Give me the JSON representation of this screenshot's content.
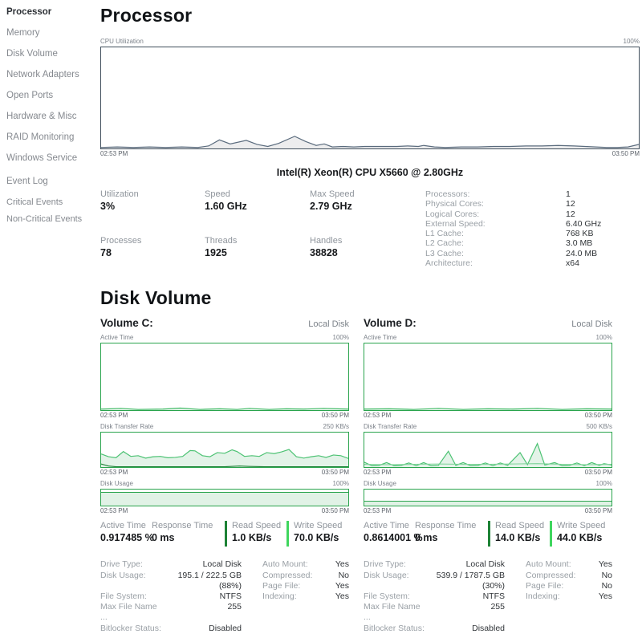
{
  "colors": {
    "accent_green": "#2aa44d",
    "green_light": "#4cc273",
    "green_pale": "#7fd49a",
    "green_fill": "rgba(42,164,77,0.13)",
    "read_bar": "#1d8236",
    "write_bar": "#3fd65e",
    "cpu_border": "#3f4e5c",
    "cpu_line": "#5a6b7d",
    "cpu_fill": "#ededee"
  },
  "sidebar": {
    "items": [
      {
        "label": "Processor",
        "active": true
      },
      {
        "label": "Memory"
      },
      {
        "label": "Disk Volume"
      },
      {
        "label": "Network Adapters"
      },
      {
        "label": "Open Ports"
      },
      {
        "label": "Hardware & Misc"
      },
      {
        "label": "RAID Monitoring"
      },
      {
        "label": "Windows Service"
      },
      {
        "label": "Event Log",
        "group_start": true
      },
      {
        "label": "Critical Events",
        "sub": true
      },
      {
        "label": "Non-Critical Events",
        "sub": true
      }
    ]
  },
  "processor": {
    "title": "Processor",
    "chart": {
      "label": "CPU Utilization",
      "max_label": "100%",
      "start_time": "02:53 PM",
      "end_time": "03:50 PM",
      "points": [
        [
          0,
          1
        ],
        [
          3,
          1.5
        ],
        [
          6,
          1
        ],
        [
          9,
          1.5
        ],
        [
          12,
          1
        ],
        [
          15,
          1.5
        ],
        [
          18,
          1
        ],
        [
          20,
          2.5
        ],
        [
          22,
          8.5
        ],
        [
          24,
          4.5
        ],
        [
          27,
          8
        ],
        [
          29,
          4
        ],
        [
          31,
          2
        ],
        [
          33,
          5
        ],
        [
          36,
          12
        ],
        [
          38,
          7
        ],
        [
          40,
          3
        ],
        [
          41.5,
          4.5
        ],
        [
          43,
          1.5
        ],
        [
          45,
          2
        ],
        [
          47,
          1.5
        ],
        [
          49,
          2
        ],
        [
          51,
          2
        ],
        [
          53,
          2
        ],
        [
          55,
          2
        ],
        [
          57,
          2.5
        ],
        [
          59,
          2
        ],
        [
          60,
          3
        ],
        [
          62,
          1.5
        ],
        [
          64,
          1
        ],
        [
          67,
          1.5
        ],
        [
          70,
          1.5
        ],
        [
          73,
          2
        ],
        [
          76,
          2
        ],
        [
          79,
          2.5
        ],
        [
          82,
          2.5
        ],
        [
          85,
          3
        ],
        [
          88,
          2.5
        ],
        [
          90,
          2
        ],
        [
          92,
          1.5
        ],
        [
          94,
          1
        ],
        [
          96,
          1
        ],
        [
          98,
          1.5
        ],
        [
          100,
          4
        ]
      ]
    },
    "cpu_name": "Intel(R) Xeon(R) CPU X5660 @ 2.80GHz",
    "stats": [
      {
        "label": "Utilization",
        "value": "3%"
      },
      {
        "label": "Speed",
        "value": "1.60 GHz"
      },
      {
        "label": "Max Speed",
        "value": "2.79 GHz"
      },
      {
        "label": "Processes",
        "value": "78"
      },
      {
        "label": "Threads",
        "value": "1925"
      },
      {
        "label": "Handles",
        "value": "38828"
      }
    ],
    "details": [
      {
        "label": "Processors:",
        "value": "1"
      },
      {
        "label": "Physical Cores:",
        "value": "12"
      },
      {
        "label": "Logical Cores:",
        "value": "12"
      },
      {
        "label": "External Speed:",
        "value": "6.40 GHz"
      },
      {
        "label": "L1 Cache:",
        "value": "768 KB"
      },
      {
        "label": "L2 Cache:",
        "value": "3.0 MB"
      },
      {
        "label": "L3 Cache:",
        "value": "24.0 MB"
      },
      {
        "label": "Architecture:",
        "value": "x64"
      }
    ]
  },
  "disk": {
    "title": "Disk Volume",
    "volumes": [
      {
        "name": "Volume C:",
        "type": "Local Disk",
        "active_chart": {
          "label": "Active Time",
          "max_label": "100%",
          "start_time": "02:53 PM",
          "end_time": "03:50 PM",
          "points": [
            [
              0,
              1.5
            ],
            [
              8,
              2.5
            ],
            [
              15,
              1
            ],
            [
              25,
              1.5
            ],
            [
              32,
              3
            ],
            [
              40,
              1
            ],
            [
              48,
              2
            ],
            [
              55,
              1
            ],
            [
              60,
              2.5
            ],
            [
              68,
              1
            ],
            [
              75,
              2
            ],
            [
              82,
              1.5
            ],
            [
              90,
              2.5
            ],
            [
              100,
              1.5
            ]
          ]
        },
        "transfer_chart": {
          "label": "Disk Transfer Rate",
          "max_label": "250 KB/s",
          "start_time": "02:53 PM",
          "end_time": "03:50 PM",
          "write_points": [
            [
              0,
              38
            ],
            [
              3,
              30
            ],
            [
              6,
              27
            ],
            [
              9,
              45
            ],
            [
              12,
              31
            ],
            [
              15,
              33
            ],
            [
              18,
              26
            ],
            [
              21,
              30
            ],
            [
              24,
              31
            ],
            [
              27,
              27
            ],
            [
              30,
              28
            ],
            [
              33,
              31
            ],
            [
              36,
              48
            ],
            [
              38,
              47
            ],
            [
              41,
              33
            ],
            [
              44,
              30
            ],
            [
              47,
              42
            ],
            [
              50,
              40
            ],
            [
              53,
              50
            ],
            [
              55,
              45
            ],
            [
              58,
              31
            ],
            [
              61,
              33
            ],
            [
              64,
              31
            ],
            [
              67,
              42
            ],
            [
              70,
              39
            ],
            [
              73,
              44
            ],
            [
              76,
              51
            ],
            [
              79,
              30
            ],
            [
              82,
              26
            ],
            [
              85,
              30
            ],
            [
              88,
              33
            ],
            [
              91,
              28
            ],
            [
              94,
              35
            ],
            [
              97,
              33
            ],
            [
              100,
              25
            ]
          ],
          "read_points": [
            [
              0,
              9
            ],
            [
              3,
              3
            ],
            [
              6,
              1
            ],
            [
              10,
              1
            ],
            [
              20,
              1
            ],
            [
              30,
              1
            ],
            [
              40,
              1
            ],
            [
              50,
              1
            ],
            [
              56,
              3
            ],
            [
              60,
              2
            ],
            [
              66,
              1
            ],
            [
              75,
              1
            ],
            [
              85,
              1
            ],
            [
              100,
              1
            ]
          ]
        },
        "usage_chart": {
          "label": "Disk Usage",
          "max_label": "100%",
          "start_time": "02:53 PM",
          "end_time": "03:50 PM",
          "percent": 88
        },
        "stats": {
          "active_time_label": "Active Time",
          "active_time": "0.917485 %",
          "response_time_label": "Response Time",
          "response_time": "0 ms",
          "read_label": "Read Speed",
          "read": "1.0 KB/s",
          "write_label": "Write Speed",
          "write": "70.0 KB/s"
        },
        "details_left": [
          {
            "label": "Drive Type:",
            "value": "Local Disk"
          },
          {
            "label": "Disk Usage:",
            "value": "195.1 / 222.5 GB (88%)"
          },
          {
            "label": "File System:",
            "value": "NTFS"
          },
          {
            "label": "Max File Name ...",
            "value": "255"
          },
          {
            "label": "Bitlocker Status:",
            "value": "Disabled"
          }
        ],
        "details_right": [
          {
            "label": "Auto Mount:",
            "value": "Yes"
          },
          {
            "label": "Compressed:",
            "value": "No"
          },
          {
            "label": "Page File:",
            "value": "Yes"
          },
          {
            "label": "Indexing:",
            "value": "Yes"
          }
        ]
      },
      {
        "name": "Volume D:",
        "type": "Local Disk",
        "active_chart": {
          "label": "Active Time",
          "max_label": "100%",
          "start_time": "02:53 PM",
          "end_time": "03:50 PM",
          "points": [
            [
              0,
              1.5
            ],
            [
              10,
              2
            ],
            [
              20,
              1
            ],
            [
              30,
              2.5
            ],
            [
              40,
              1
            ],
            [
              50,
              2
            ],
            [
              60,
              1.5
            ],
            [
              70,
              2.5
            ],
            [
              80,
              1
            ],
            [
              90,
              2
            ],
            [
              100,
              1.5
            ]
          ]
        },
        "transfer_chart": {
          "label": "Disk Transfer Rate",
          "max_label": "500 KB/s",
          "start_time": "02:53 PM",
          "end_time": "03:50 PM",
          "write_points": [
            [
              0,
              14
            ],
            [
              3,
              4
            ],
            [
              6,
              5
            ],
            [
              9,
              13
            ],
            [
              12,
              4
            ],
            [
              15,
              5
            ],
            [
              18,
              12
            ],
            [
              21,
              4
            ],
            [
              24,
              13
            ],
            [
              27,
              4
            ],
            [
              30,
              5
            ],
            [
              34,
              46
            ],
            [
              37,
              5
            ],
            [
              40,
              13
            ],
            [
              43,
              4
            ],
            [
              46,
              5
            ],
            [
              49,
              12
            ],
            [
              52,
              4
            ],
            [
              55,
              12
            ],
            [
              58,
              5
            ],
            [
              63,
              42
            ],
            [
              66,
              7
            ],
            [
              70,
              68
            ],
            [
              73,
              6
            ],
            [
              77,
              13
            ],
            [
              80,
              4
            ],
            [
              83,
              5
            ],
            [
              86,
              12
            ],
            [
              89,
              4
            ],
            [
              92,
              13
            ],
            [
              95,
              5
            ],
            [
              97,
              10
            ],
            [
              100,
              6
            ]
          ],
          "read_points": [
            [
              0,
              8
            ],
            [
              10,
              7
            ],
            [
              20,
              8
            ],
            [
              30,
              9
            ],
            [
              40,
              8
            ],
            [
              50,
              8
            ],
            [
              60,
              9
            ],
            [
              70,
              10
            ],
            [
              80,
              8
            ],
            [
              90,
              7
            ],
            [
              100,
              8
            ]
          ]
        },
        "usage_chart": {
          "label": "Disk Usage",
          "max_label": "100%",
          "start_time": "02:53 PM",
          "end_time": "03:50 PM",
          "percent": 30
        },
        "stats": {
          "active_time_label": "Active Time",
          "active_time": "0.8614001 %",
          "response_time_label": "Response Time",
          "response_time": "0 ms",
          "read_label": "Read Speed",
          "read": "14.0 KB/s",
          "write_label": "Write Speed",
          "write": "44.0 KB/s"
        },
        "details_left": [
          {
            "label": "Drive Type:",
            "value": "Local Disk"
          },
          {
            "label": "Disk Usage:",
            "value": "539.9 / 1787.5 GB (30%)"
          },
          {
            "label": "File System:",
            "value": "NTFS"
          },
          {
            "label": "Max File Name ...",
            "value": "255"
          },
          {
            "label": "Bitlocker Status:",
            "value": "Disabled"
          }
        ],
        "details_right": [
          {
            "label": "Auto Mount:",
            "value": "Yes"
          },
          {
            "label": "Compressed:",
            "value": "No"
          },
          {
            "label": "Page File:",
            "value": "No"
          },
          {
            "label": "Indexing:",
            "value": "Yes"
          }
        ]
      }
    ]
  }
}
